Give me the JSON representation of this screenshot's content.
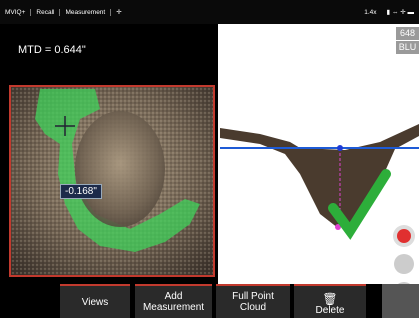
{
  "top_bar": {
    "items": [
      "MVIQ+",
      "Recall",
      "Measurement"
    ],
    "zoom": "1.4x"
  },
  "left_panel": {
    "measurement": "MTD = 0.644\"",
    "annotation": "-0.168\""
  },
  "right_panel": {
    "badges": [
      "648",
      "BLU"
    ]
  },
  "bottom_bar": {
    "buttons": [
      "Views",
      "Add Measurement",
      "Full Point Cloud",
      "Delete"
    ]
  }
}
